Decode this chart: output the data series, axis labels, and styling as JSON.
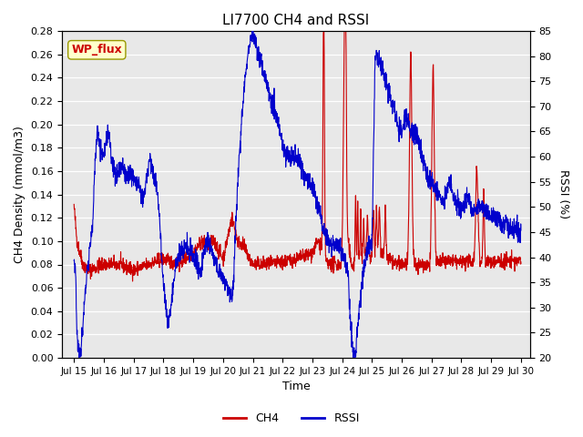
{
  "title": "LI7700 CH4 and RSSI",
  "xlabel": "Time",
  "ylabel_left": "CH4 Density (mmol/m3)",
  "ylabel_right": "RSSI (%)",
  "ch4_color": "#cc0000",
  "rssi_color": "#0000cc",
  "ylim_left": [
    0.0,
    0.28
  ],
  "ylim_right": [
    20,
    85
  ],
  "yticks_left": [
    0.0,
    0.02,
    0.04,
    0.06,
    0.08,
    0.1,
    0.12,
    0.14,
    0.16,
    0.18,
    0.2,
    0.22,
    0.24,
    0.26,
    0.28
  ],
  "yticks_right": [
    20,
    25,
    30,
    35,
    40,
    45,
    50,
    55,
    60,
    65,
    70,
    75,
    80,
    85
  ],
  "xtick_labels": [
    "Jul 15",
    "Jul 16",
    "Jul 17",
    "Jul 18",
    "Jul 19",
    "Jul 20",
    "Jul 21",
    "Jul 22",
    "Jul 23",
    "Jul 24",
    "Jul 25",
    "Jul 26",
    "Jul 27",
    "Jul 28",
    "Jul 29",
    "Jul 30"
  ],
  "xtick_positions": [
    15,
    16,
    17,
    18,
    19,
    20,
    21,
    22,
    23,
    24,
    25,
    26,
    27,
    28,
    29,
    30
  ],
  "wp_flux_label": "WP_flux",
  "wp_flux_color": "#cc0000",
  "wp_flux_bg": "#ffffcc",
  "fig_bg_color": "#ffffff",
  "plot_bg_color": "#e8e8e8",
  "line_width": 0.8,
  "figsize": [
    6.4,
    4.8
  ],
  "dpi": 100
}
